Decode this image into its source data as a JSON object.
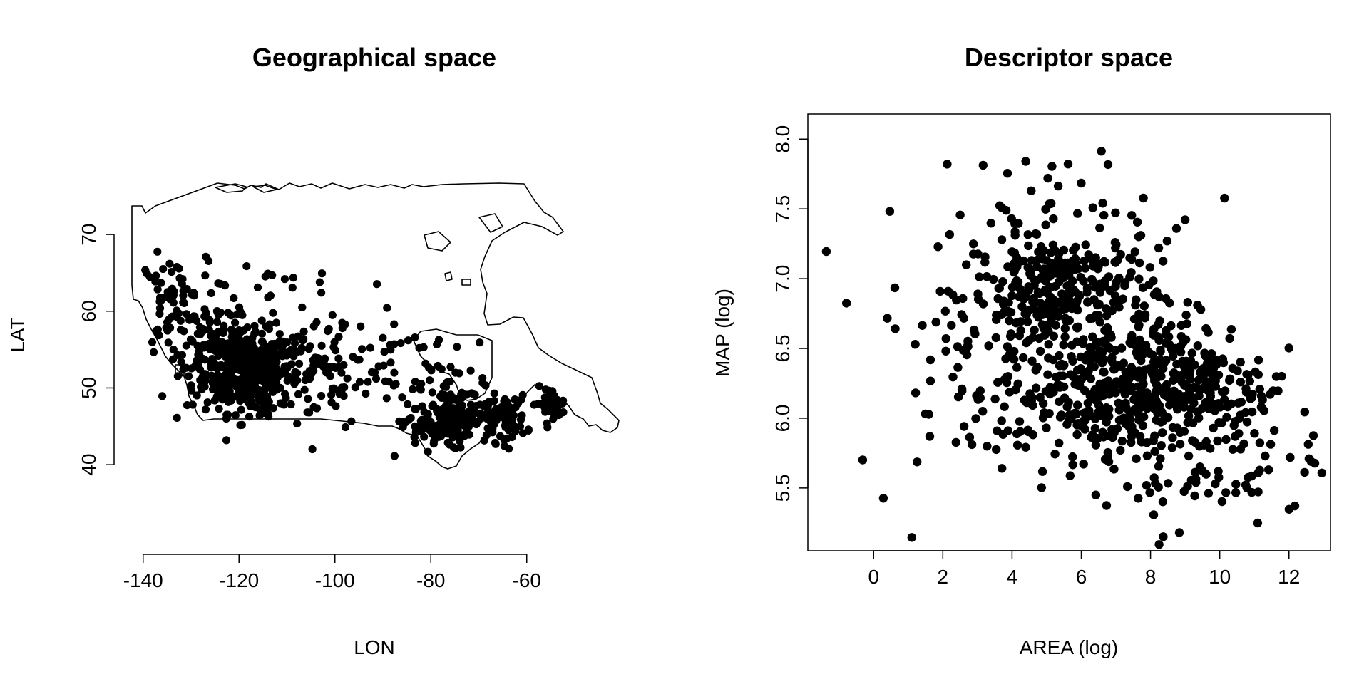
{
  "chart_data": [
    {
      "type": "scatter",
      "title": "Geographical space",
      "xlabel": "LON",
      "ylabel": "LAT",
      "xlim": [
        -141,
        -50
      ],
      "ylim": [
        35,
        74
      ],
      "xticks": [
        -140,
        -120,
        -100,
        -80,
        -60
      ],
      "yticks": [
        40,
        50,
        60,
        70
      ],
      "xtick_labels": [
        "-140",
        "-120",
        "-100",
        "-80",
        "-60"
      ],
      "ytick_labels": [
        "40",
        "50",
        "60",
        "70"
      ],
      "box": false,
      "has_map_outline": true,
      "point_color": "#000000",
      "clusters": [
        {
          "center": [
            -118,
            52
          ],
          "spread": [
            4.5,
            2.6
          ],
          "n": 420
        },
        {
          "center": [
            -125,
            55
          ],
          "spread": [
            3.5,
            3.5
          ],
          "n": 90
        },
        {
          "center": [
            -134,
            61
          ],
          "spread": [
            3.5,
            3.0
          ],
          "n": 70
        },
        {
          "center": [
            -103,
            52
          ],
          "spread": [
            9,
            3.5
          ],
          "n": 120
        },
        {
          "center": [
            -113,
            60
          ],
          "spread": [
            10,
            4.5
          ],
          "n": 50
        },
        {
          "center": [
            -79,
            45
          ],
          "spread": [
            3.5,
            1.5
          ],
          "n": 90
        },
        {
          "center": [
            -73,
            47
          ],
          "spread": [
            4.5,
            2.0
          ],
          "n": 80
        },
        {
          "center": [
            -65,
            46
          ],
          "spread": [
            2.5,
            1.5
          ],
          "n": 70
        },
        {
          "center": [
            -55,
            48
          ],
          "spread": [
            1.5,
            1.0
          ],
          "n": 40
        },
        {
          "center": [
            -78,
            51
          ],
          "spread": [
            7,
            3.5
          ],
          "n": 40
        }
      ]
    },
    {
      "type": "scatter",
      "title": "Descriptor space",
      "xlabel": "AREA (log)",
      "ylabel": "MAP (log)",
      "xlim": [
        -1.9,
        13.2
      ],
      "ylim": [
        5.05,
        8.18
      ],
      "xticks": [
        0,
        2,
        4,
        6,
        8,
        10,
        12
      ],
      "yticks": [
        5.5,
        6.0,
        6.5,
        7.0,
        7.5,
        8.0
      ],
      "xtick_labels": [
        "0",
        "2",
        "4",
        "6",
        "8",
        "10",
        "12"
      ],
      "ytick_labels": [
        "5.5",
        "6.0",
        "6.5",
        "7.0",
        "7.5",
        "8.0"
      ],
      "box": true,
      "point_color": "#000000",
      "clusters": [
        {
          "center": [
            5.5,
            6.9
          ],
          "spread": [
            1.3,
            0.22
          ],
          "n": 300
        },
        {
          "center": [
            6.6,
            6.2
          ],
          "spread": [
            1.5,
            0.22
          ],
          "n": 300
        },
        {
          "center": [
            8.9,
            6.25
          ],
          "spread": [
            1.3,
            0.25
          ],
          "n": 230
        },
        {
          "center": [
            3.0,
            6.5
          ],
          "spread": [
            1.8,
            0.45
          ],
          "n": 90
        },
        {
          "center": [
            6.0,
            7.5
          ],
          "spread": [
            2.2,
            0.25
          ],
          "n": 40
        },
        {
          "center": [
            10.5,
            5.8
          ],
          "spread": [
            1.2,
            0.3
          ],
          "n": 60
        },
        {
          "center": [
            8.0,
            5.6
          ],
          "spread": [
            1.5,
            0.2
          ],
          "n": 40
        }
      ]
    }
  ]
}
